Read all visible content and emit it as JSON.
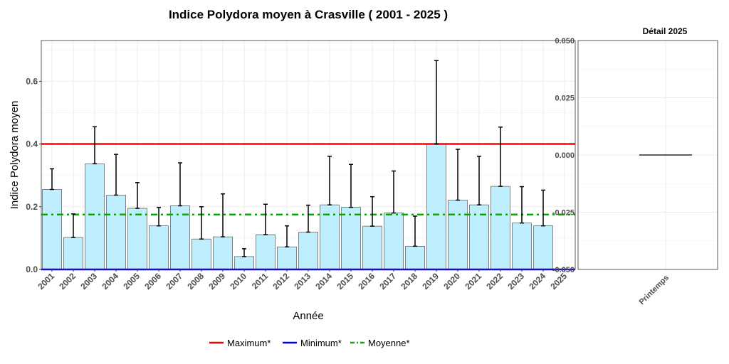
{
  "chart_data": [
    {
      "type": "bar",
      "title": "Indice Polydora moyen à Crasville ( 2001 - 2025 )",
      "xlabel": "Année",
      "ylabel": "Indice Polydora moyen",
      "ylim": [
        0,
        0.73
      ],
      "yticks": [
        "0.0",
        "0.2",
        "0.4",
        "0.6"
      ],
      "grid": true,
      "categories": [
        "2001",
        "2002",
        "2003",
        "2004",
        "2005",
        "2006",
        "2007",
        "2008",
        "2009",
        "2010",
        "2011",
        "2012",
        "2013",
        "2014",
        "2015",
        "2016",
        "2017",
        "2018",
        "2019",
        "2020",
        "2021",
        "2022",
        "2023",
        "2024",
        "2025"
      ],
      "values": [
        0.255,
        0.102,
        0.337,
        0.237,
        0.195,
        0.139,
        0.203,
        0.097,
        0.104,
        0.041,
        0.111,
        0.072,
        0.119,
        0.206,
        0.198,
        0.138,
        0.18,
        0.074,
        0.4,
        0.221,
        0.206,
        0.265,
        0.148,
        0.139,
        null
      ],
      "error_upper": [
        0.321,
        0.177,
        0.455,
        0.367,
        0.277,
        0.198,
        0.34,
        0.2,
        0.241,
        0.066,
        0.208,
        0.139,
        0.205,
        0.361,
        0.335,
        0.232,
        0.314,
        0.17,
        0.666,
        0.383,
        0.361,
        0.454,
        0.264,
        0.253,
        null
      ],
      "reference_lines": [
        {
          "name": "Maximum*",
          "value": 0.4,
          "color": "#ff0000",
          "style": "solid"
        },
        {
          "name": "Minimum*",
          "value": 0.0,
          "color": "#0000ff",
          "style": "solid"
        },
        {
          "name": "Moyenne*",
          "value": 0.175,
          "color": "#1a9e1a",
          "style": "dotdash"
        }
      ],
      "bar_color": "#bfefff",
      "legend_placement": "bottom"
    },
    {
      "type": "line",
      "title": "Détail 2025",
      "categories": [
        "Printemps"
      ],
      "ylim": [
        -0.05,
        0.05
      ],
      "yticks": [
        "-0.050",
        "-0.025",
        "0.000",
        "0.025",
        "0.050"
      ],
      "values": [
        0.0
      ]
    }
  ]
}
